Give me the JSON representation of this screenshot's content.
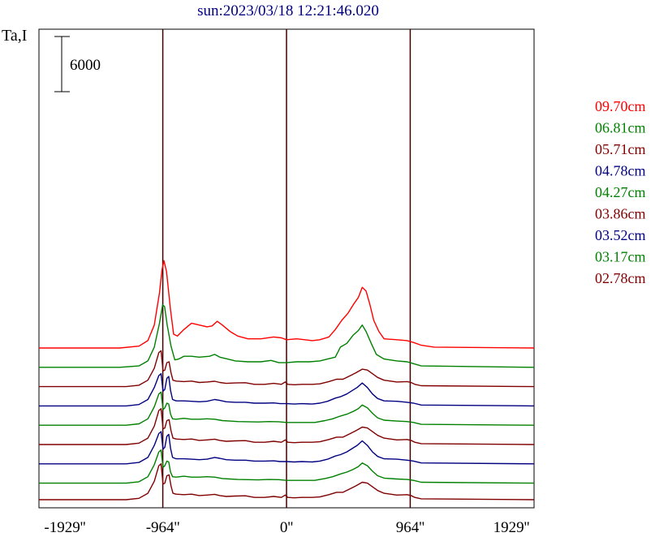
{
  "chart_data": {
    "type": "line",
    "title": "sun:2023/03/18 12:21:46.020",
    "ylabel": "Ta,I",
    "scale_bar_label": "6000",
    "scale_bar_value": 6000,
    "xlim": [
      -1929,
      1929
    ],
    "x_ticks": [
      -1929,
      -964,
      0,
      964,
      1929
    ],
    "x_tick_labels": [
      "-1929''",
      "-964''",
      "0''",
      "964''",
      "1929''"
    ],
    "vertical_markers": [
      -964,
      0,
      964
    ],
    "grid": false,
    "legend_placement": "right",
    "series": [
      {
        "name": "09.70cm",
        "color": "#ff0000",
        "baseline": 16500,
        "profile": "red"
      },
      {
        "name": "06.81cm",
        "color": "#008000",
        "baseline": 14400,
        "profile": "greenA"
      },
      {
        "name": "05.71cm",
        "color": "#800000",
        "baseline": 12300,
        "profile": "maroon"
      },
      {
        "name": "04.78cm",
        "color": "#000080",
        "baseline": 10200,
        "profile": "blue"
      },
      {
        "name": "04.27cm",
        "color": "#008000",
        "baseline": 8100,
        "profile": "greenB"
      },
      {
        "name": "03.86cm",
        "color": "#800000",
        "baseline": 6000,
        "profile": "maroon"
      },
      {
        "name": "03.52cm",
        "color": "#000080",
        "baseline": 3900,
        "profile": "blue"
      },
      {
        "name": "03.17cm",
        "color": "#008000",
        "baseline": 1800,
        "profile": "greenB"
      },
      {
        "name": "02.78cm",
        "color": "#800000",
        "baseline": 0,
        "profile": "maroon"
      }
    ],
    "profiles": {
      "red": [
        [
          -1929,
          0
        ],
        [
          -1300,
          0
        ],
        [
          -1150,
          200
        ],
        [
          -1080,
          800
        ],
        [
          -1030,
          2500
        ],
        [
          -990,
          6000
        ],
        [
          -970,
          8500
        ],
        [
          -955,
          9500
        ],
        [
          -935,
          8300
        ],
        [
          -905,
          4300
        ],
        [
          -880,
          1500
        ],
        [
          -850,
          1300
        ],
        [
          -800,
          2000
        ],
        [
          -740,
          2700
        ],
        [
          -680,
          2500
        ],
        [
          -620,
          2300
        ],
        [
          -580,
          2400
        ],
        [
          -540,
          2900
        ],
        [
          -500,
          2500
        ],
        [
          -440,
          1800
        ],
        [
          -380,
          1300
        ],
        [
          -300,
          1000
        ],
        [
          -200,
          1000
        ],
        [
          -100,
          1200
        ],
        [
          -40,
          1100
        ],
        [
          0,
          900
        ],
        [
          80,
          1000
        ],
        [
          200,
          800
        ],
        [
          260,
          900
        ],
        [
          330,
          1200
        ],
        [
          380,
          2000
        ],
        [
          430,
          3000
        ],
        [
          480,
          3800
        ],
        [
          520,
          4700
        ],
        [
          560,
          5500
        ],
        [
          590,
          6600
        ],
        [
          620,
          6200
        ],
        [
          650,
          4700
        ],
        [
          680,
          3000
        ],
        [
          720,
          1800
        ],
        [
          760,
          1000
        ],
        [
          860,
          900
        ],
        [
          940,
          800
        ],
        [
          990,
          600
        ],
        [
          1050,
          300
        ],
        [
          1150,
          100
        ],
        [
          1929,
          0
        ]
      ],
      "greenA": [
        [
          -1929,
          0
        ],
        [
          -1300,
          0
        ],
        [
          -1150,
          150
        ],
        [
          -1080,
          700
        ],
        [
          -1030,
          2200
        ],
        [
          -990,
          4800
        ],
        [
          -965,
          6800
        ],
        [
          -950,
          6600
        ],
        [
          -930,
          4600
        ],
        [
          -900,
          2300
        ],
        [
          -870,
          800
        ],
        [
          -840,
          900
        ],
        [
          -800,
          1200
        ],
        [
          -740,
          1200
        ],
        [
          -680,
          1100
        ],
        [
          -600,
          1200
        ],
        [
          -560,
          1400
        ],
        [
          -520,
          1100
        ],
        [
          -460,
          900
        ],
        [
          -400,
          700
        ],
        [
          -300,
          600
        ],
        [
          -200,
          600
        ],
        [
          -120,
          750
        ],
        [
          -60,
          500
        ],
        [
          0,
          500
        ],
        [
          80,
          600
        ],
        [
          180,
          600
        ],
        [
          260,
          700
        ],
        [
          320,
          900
        ],
        [
          380,
          1100
        ],
        [
          420,
          2200
        ],
        [
          470,
          2600
        ],
        [
          520,
          3500
        ],
        [
          560,
          4000
        ],
        [
          590,
          4600
        ],
        [
          620,
          3900
        ],
        [
          660,
          2600
        ],
        [
          700,
          1400
        ],
        [
          760,
          900
        ],
        [
          860,
          700
        ],
        [
          940,
          600
        ],
        [
          990,
          400
        ],
        [
          1050,
          150
        ],
        [
          1929,
          0
        ]
      ],
      "maroon": [
        [
          -1929,
          0
        ],
        [
          -1250,
          0
        ],
        [
          -1150,
          150
        ],
        [
          -1080,
          700
        ],
        [
          -1030,
          2000
        ],
        [
          -995,
          3700
        ],
        [
          -978,
          3900
        ],
        [
          -962,
          1700
        ],
        [
          -948,
          1800
        ],
        [
          -932,
          2600
        ],
        [
          -915,
          2700
        ],
        [
          -900,
          1500
        ],
        [
          -885,
          700
        ],
        [
          -860,
          600
        ],
        [
          -800,
          550
        ],
        [
          -740,
          600
        ],
        [
          -680,
          450
        ],
        [
          -620,
          500
        ],
        [
          -560,
          580
        ],
        [
          -520,
          450
        ],
        [
          -470,
          350
        ],
        [
          -400,
          400
        ],
        [
          -320,
          420
        ],
        [
          -250,
          250
        ],
        [
          -170,
          250
        ],
        [
          -100,
          350
        ],
        [
          -40,
          250
        ],
        [
          -10,
          500
        ],
        [
          10,
          250
        ],
        [
          60,
          200
        ],
        [
          120,
          250
        ],
        [
          200,
          250
        ],
        [
          260,
          300
        ],
        [
          330,
          550
        ],
        [
          390,
          800
        ],
        [
          440,
          800
        ],
        [
          490,
          1150
        ],
        [
          540,
          1500
        ],
        [
          590,
          1900
        ],
        [
          630,
          1800
        ],
        [
          670,
          1400
        ],
        [
          710,
          1000
        ],
        [
          760,
          700
        ],
        [
          860,
          500
        ],
        [
          940,
          550
        ],
        [
          970,
          450
        ],
        [
          1000,
          250
        ],
        [
          1050,
          100
        ],
        [
          1929,
          0
        ]
      ],
      "blue": [
        [
          -1929,
          0
        ],
        [
          -1250,
          0
        ],
        [
          -1150,
          150
        ],
        [
          -1080,
          700
        ],
        [
          -1030,
          2000
        ],
        [
          -995,
          3300
        ],
        [
          -978,
          3500
        ],
        [
          -962,
          1600
        ],
        [
          -948,
          1800
        ],
        [
          -932,
          3000
        ],
        [
          -918,
          3200
        ],
        [
          -904,
          1700
        ],
        [
          -888,
          700
        ],
        [
          -860,
          550
        ],
        [
          -800,
          550
        ],
        [
          -740,
          500
        ],
        [
          -680,
          450
        ],
        [
          -620,
          500
        ],
        [
          -560,
          700
        ],
        [
          -520,
          600
        ],
        [
          -470,
          450
        ],
        [
          -400,
          400
        ],
        [
          -320,
          400
        ],
        [
          -250,
          300
        ],
        [
          -170,
          300
        ],
        [
          -100,
          330
        ],
        [
          -50,
          250
        ],
        [
          0,
          250
        ],
        [
          60,
          200
        ],
        [
          120,
          250
        ],
        [
          200,
          200
        ],
        [
          260,
          300
        ],
        [
          320,
          500
        ],
        [
          380,
          850
        ],
        [
          420,
          1000
        ],
        [
          470,
          1300
        ],
        [
          510,
          1650
        ],
        [
          550,
          2000
        ],
        [
          590,
          2500
        ],
        [
          630,
          2000
        ],
        [
          670,
          1300
        ],
        [
          710,
          800
        ],
        [
          760,
          550
        ],
        [
          860,
          500
        ],
        [
          940,
          400
        ],
        [
          990,
          300
        ],
        [
          1050,
          100
        ],
        [
          1929,
          0
        ]
      ],
      "greenB": [
        [
          -1929,
          0
        ],
        [
          -1250,
          0
        ],
        [
          -1150,
          150
        ],
        [
          -1080,
          700
        ],
        [
          -1030,
          2000
        ],
        [
          -995,
          3400
        ],
        [
          -978,
          3600
        ],
        [
          -962,
          1700
        ],
        [
          -948,
          1900
        ],
        [
          -932,
          2400
        ],
        [
          -918,
          2300
        ],
        [
          -904,
          1200
        ],
        [
          -888,
          700
        ],
        [
          -860,
          650
        ],
        [
          -800,
          750
        ],
        [
          -740,
          650
        ],
        [
          -680,
          650
        ],
        [
          -620,
          700
        ],
        [
          -560,
          650
        ],
        [
          -500,
          500
        ],
        [
          -440,
          450
        ],
        [
          -380,
          400
        ],
        [
          -300,
          380
        ],
        [
          -220,
          350
        ],
        [
          -140,
          400
        ],
        [
          -60,
          380
        ],
        [
          0,
          300
        ],
        [
          60,
          300
        ],
        [
          140,
          300
        ],
        [
          220,
          300
        ],
        [
          300,
          500
        ],
        [
          360,
          700
        ],
        [
          420,
          1000
        ],
        [
          470,
          1200
        ],
        [
          520,
          1500
        ],
        [
          560,
          1800
        ],
        [
          590,
          2200
        ],
        [
          630,
          1900
        ],
        [
          670,
          1300
        ],
        [
          710,
          800
        ],
        [
          760,
          550
        ],
        [
          860,
          450
        ],
        [
          940,
          400
        ],
        [
          990,
          300
        ],
        [
          1050,
          100
        ],
        [
          1929,
          0
        ]
      ]
    }
  }
}
